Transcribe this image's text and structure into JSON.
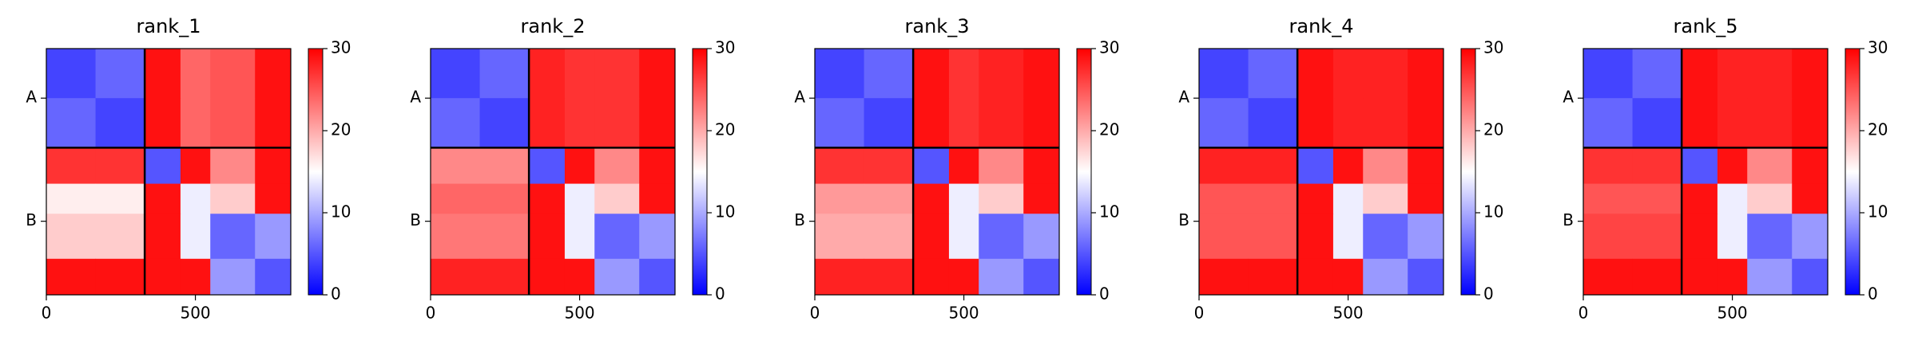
{
  "chart_data": [
    {
      "type": "heatmap",
      "title": "rank_1",
      "xlim": [
        0,
        820
      ],
      "ylim": [
        820,
        0
      ],
      "xticks": [
        0,
        500
      ],
      "yticks": [
        {
          "value": 165,
          "label": "A"
        },
        {
          "value": 575,
          "label": "B"
        }
      ],
      "chain_breaks": [
        330
      ],
      "edges": [
        0,
        165,
        330,
        450,
        550,
        700,
        820
      ],
      "clim": [
        0,
        30
      ],
      "cticks": [
        0,
        10,
        20,
        30
      ],
      "matrix": [
        [
          4,
          6,
          29,
          24,
          25,
          29
        ],
        [
          6,
          4,
          29,
          24,
          25,
          29
        ],
        [
          27,
          27,
          5,
          29,
          22,
          29
        ],
        [
          16,
          16,
          29,
          14,
          18,
          29
        ],
        [
          18,
          18,
          29,
          14,
          6,
          9
        ],
        [
          29,
          29,
          29,
          29,
          9,
          5
        ]
      ]
    },
    {
      "type": "heatmap",
      "title": "rank_2",
      "xlim": [
        0,
        820
      ],
      "ylim": [
        820,
        0
      ],
      "xticks": [
        0,
        500
      ],
      "yticks": [
        {
          "value": 165,
          "label": "A"
        },
        {
          "value": 575,
          "label": "B"
        }
      ],
      "chain_breaks": [
        330
      ],
      "edges": [
        0,
        165,
        330,
        450,
        550,
        700,
        820
      ],
      "clim": [
        0,
        30
      ],
      "cticks": [
        0,
        10,
        20,
        30
      ],
      "matrix": [
        [
          4,
          6,
          28,
          27,
          27,
          29
        ],
        [
          6,
          4,
          28,
          27,
          27,
          29
        ],
        [
          22,
          22,
          5,
          29,
          22,
          29
        ],
        [
          24,
          24,
          29,
          14,
          18,
          29
        ],
        [
          23,
          23,
          29,
          14,
          6,
          9
        ],
        [
          28,
          28,
          29,
          29,
          9,
          5
        ]
      ]
    },
    {
      "type": "heatmap",
      "title": "rank_3",
      "xlim": [
        0,
        820
      ],
      "ylim": [
        820,
        0
      ],
      "xticks": [
        0,
        500
      ],
      "yticks": [
        {
          "value": 165,
          "label": "A"
        },
        {
          "value": 575,
          "label": "B"
        }
      ],
      "chain_breaks": [
        330
      ],
      "edges": [
        0,
        165,
        330,
        450,
        550,
        700,
        820
      ],
      "clim": [
        0,
        30
      ],
      "cticks": [
        0,
        10,
        20,
        30
      ],
      "matrix": [
        [
          4,
          6,
          29,
          27,
          28,
          29
        ],
        [
          6,
          4,
          29,
          27,
          28,
          29
        ],
        [
          27,
          27,
          5,
          29,
          22,
          29
        ],
        [
          21,
          21,
          29,
          14,
          18,
          29
        ],
        [
          20,
          20,
          29,
          14,
          6,
          9
        ],
        [
          28,
          28,
          29,
          29,
          9,
          5
        ]
      ]
    },
    {
      "type": "heatmap",
      "title": "rank_4",
      "xlim": [
        0,
        820
      ],
      "ylim": [
        820,
        0
      ],
      "xticks": [
        0,
        500
      ],
      "yticks": [
        {
          "value": 165,
          "label": "A"
        },
        {
          "value": 575,
          "label": "B"
        }
      ],
      "chain_breaks": [
        330
      ],
      "edges": [
        0,
        165,
        330,
        450,
        550,
        700,
        820
      ],
      "clim": [
        0,
        30
      ],
      "cticks": [
        0,
        10,
        20,
        30
      ],
      "matrix": [
        [
          4,
          6,
          29,
          28,
          28,
          29
        ],
        [
          6,
          4,
          29,
          28,
          28,
          29
        ],
        [
          28,
          28,
          5,
          29,
          22,
          29
        ],
        [
          25,
          25,
          29,
          14,
          18,
          29
        ],
        [
          25,
          25,
          29,
          14,
          6,
          9
        ],
        [
          29,
          29,
          29,
          29,
          9,
          5
        ]
      ]
    },
    {
      "type": "heatmap",
      "title": "rank_5",
      "xlim": [
        0,
        820
      ],
      "ylim": [
        820,
        0
      ],
      "xticks": [
        0,
        500
      ],
      "yticks": [
        {
          "value": 165,
          "label": "A"
        },
        {
          "value": 575,
          "label": "B"
        }
      ],
      "chain_breaks": [
        330
      ],
      "edges": [
        0,
        165,
        330,
        450,
        550,
        700,
        820
      ],
      "clim": [
        0,
        30
      ],
      "cticks": [
        0,
        10,
        20,
        30
      ],
      "matrix": [
        [
          4,
          6,
          29,
          28,
          28,
          29
        ],
        [
          6,
          4,
          29,
          28,
          28,
          29
        ],
        [
          27,
          27,
          5,
          29,
          22,
          29
        ],
        [
          25,
          25,
          29,
          14,
          18,
          29
        ],
        [
          26,
          26,
          29,
          14,
          6,
          9
        ],
        [
          29,
          29,
          29,
          29,
          9,
          5
        ]
      ]
    }
  ]
}
